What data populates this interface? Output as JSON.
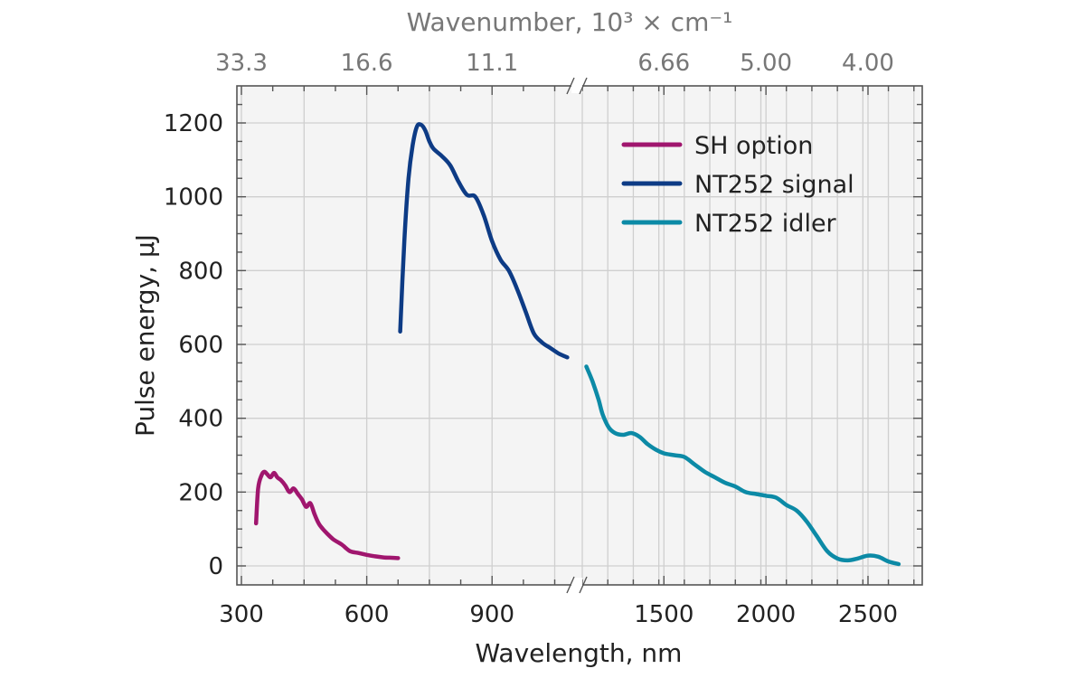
{
  "chart_data": {
    "type": "line",
    "xlabel": "Wavelength, nm",
    "ylabel": "Pulse energy, μJ",
    "x2label": "Wavenumber, 10³ × cm⁻¹",
    "ylim": [
      -50,
      1300
    ],
    "broken_x_axis": true,
    "x_segments": [
      {
        "range": [
          300,
          1090
        ],
        "ticks": [
          300,
          600,
          900
        ],
        "minor_step": 75
      },
      {
        "range": [
          1100,
          2750
        ],
        "ticks": [
          1500,
          2000,
          2500
        ],
        "minor_step": 125
      }
    ],
    "y_ticks": [
      0,
      200,
      400,
      600,
      800,
      1000,
      1200
    ],
    "top_tick_labels": [
      "33.3",
      "16.6",
      "11.1",
      "6.66",
      "5.00",
      "4.00"
    ],
    "top_tick_wavelengths": [
      300,
      600,
      900,
      1500,
      2000,
      2500
    ],
    "grid": true,
    "legend_position": "top-right",
    "series": [
      {
        "name": "SH option",
        "color": "#a0166e",
        "x": [
          335,
          340,
          348,
          355,
          362,
          370,
          378,
          386,
          395,
          405,
          415,
          425,
          435,
          445,
          455,
          465,
          475,
          485,
          495,
          505,
          520,
          540,
          560,
          580,
          600,
          620,
          640,
          660,
          675
        ],
        "y": [
          115,
          210,
          245,
          255,
          248,
          240,
          252,
          240,
          232,
          218,
          200,
          210,
          195,
          180,
          160,
          170,
          140,
          115,
          100,
          88,
          72,
          58,
          40,
          35,
          30,
          26,
          23,
          22,
          21
        ]
      },
      {
        "name": "NT252 signal",
        "color": "#0d3b85",
        "x": [
          680,
          690,
          700,
          710,
          720,
          730,
          740,
          750,
          760,
          780,
          800,
          820,
          840,
          860,
          880,
          900,
          920,
          940,
          960,
          980,
          1000,
          1020,
          1040,
          1060,
          1080
        ],
        "y": [
          635,
          880,
          1050,
          1140,
          1190,
          1195,
          1180,
          1150,
          1130,
          1110,
          1085,
          1040,
          1005,
          1000,
          950,
          880,
          830,
          800,
          750,
          690,
          630,
          605,
          590,
          575,
          565
        ]
      },
      {
        "name": "NT252 idler",
        "color": "#0c8aa6",
        "x": [
          1120,
          1150,
          1180,
          1200,
          1230,
          1260,
          1300,
          1340,
          1380,
          1420,
          1460,
          1500,
          1550,
          1600,
          1650,
          1700,
          1750,
          1800,
          1850,
          1900,
          1950,
          2000,
          2050,
          2100,
          2150,
          2200,
          2250,
          2300,
          2350,
          2400,
          2450,
          2500,
          2550,
          2600,
          2650
        ],
        "y": [
          540,
          500,
          450,
          410,
          375,
          360,
          355,
          360,
          350,
          330,
          315,
          305,
          300,
          295,
          275,
          255,
          240,
          225,
          215,
          200,
          195,
          190,
          185,
          165,
          150,
          120,
          80,
          40,
          20,
          15,
          20,
          28,
          25,
          12,
          5
        ]
      }
    ]
  }
}
